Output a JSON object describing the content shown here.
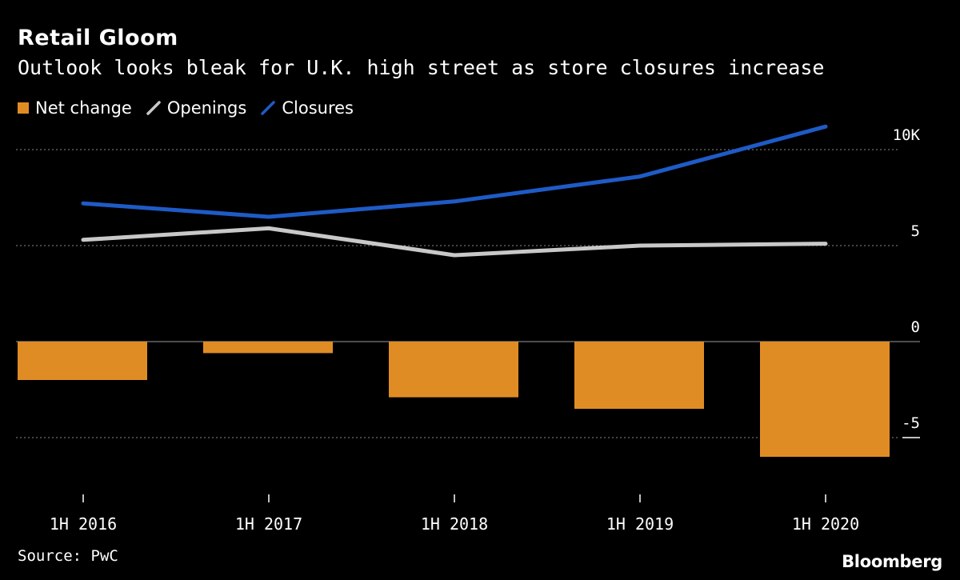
{
  "chart_data": {
    "type": "bar+line",
    "title": "Retail Gloom",
    "subtitle": "Outlook looks bleak for U.K. high street as store closures increase",
    "categories": [
      "1H 2016",
      "1H 2017",
      "1H 2018",
      "1H 2019",
      "1H 2020"
    ],
    "series": [
      {
        "name": "Net change",
        "type": "bar",
        "color": "#E08C25",
        "values": [
          -2.0,
          -0.6,
          -2.9,
          -3.5,
          -6.0
        ]
      },
      {
        "name": "Openings",
        "type": "line",
        "color": "#C8C8C8",
        "values": [
          5.3,
          5.9,
          4.5,
          5.0,
          5.1
        ]
      },
      {
        "name": "Closures",
        "type": "line",
        "color": "#1E5BC6",
        "values": [
          7.2,
          6.5,
          7.3,
          8.6,
          11.2
        ]
      }
    ],
    "y_ticks": [
      {
        "value": 10,
        "label": "10K"
      },
      {
        "value": 5,
        "label": "5"
      },
      {
        "value": 0,
        "label": "0"
      },
      {
        "value": -5,
        "label": "-5"
      }
    ],
    "ylim": [
      -7.5,
      12
    ],
    "legend_position": "top-left",
    "grid": true
  },
  "source": "Source: PwC",
  "brand": "Bloomberg"
}
